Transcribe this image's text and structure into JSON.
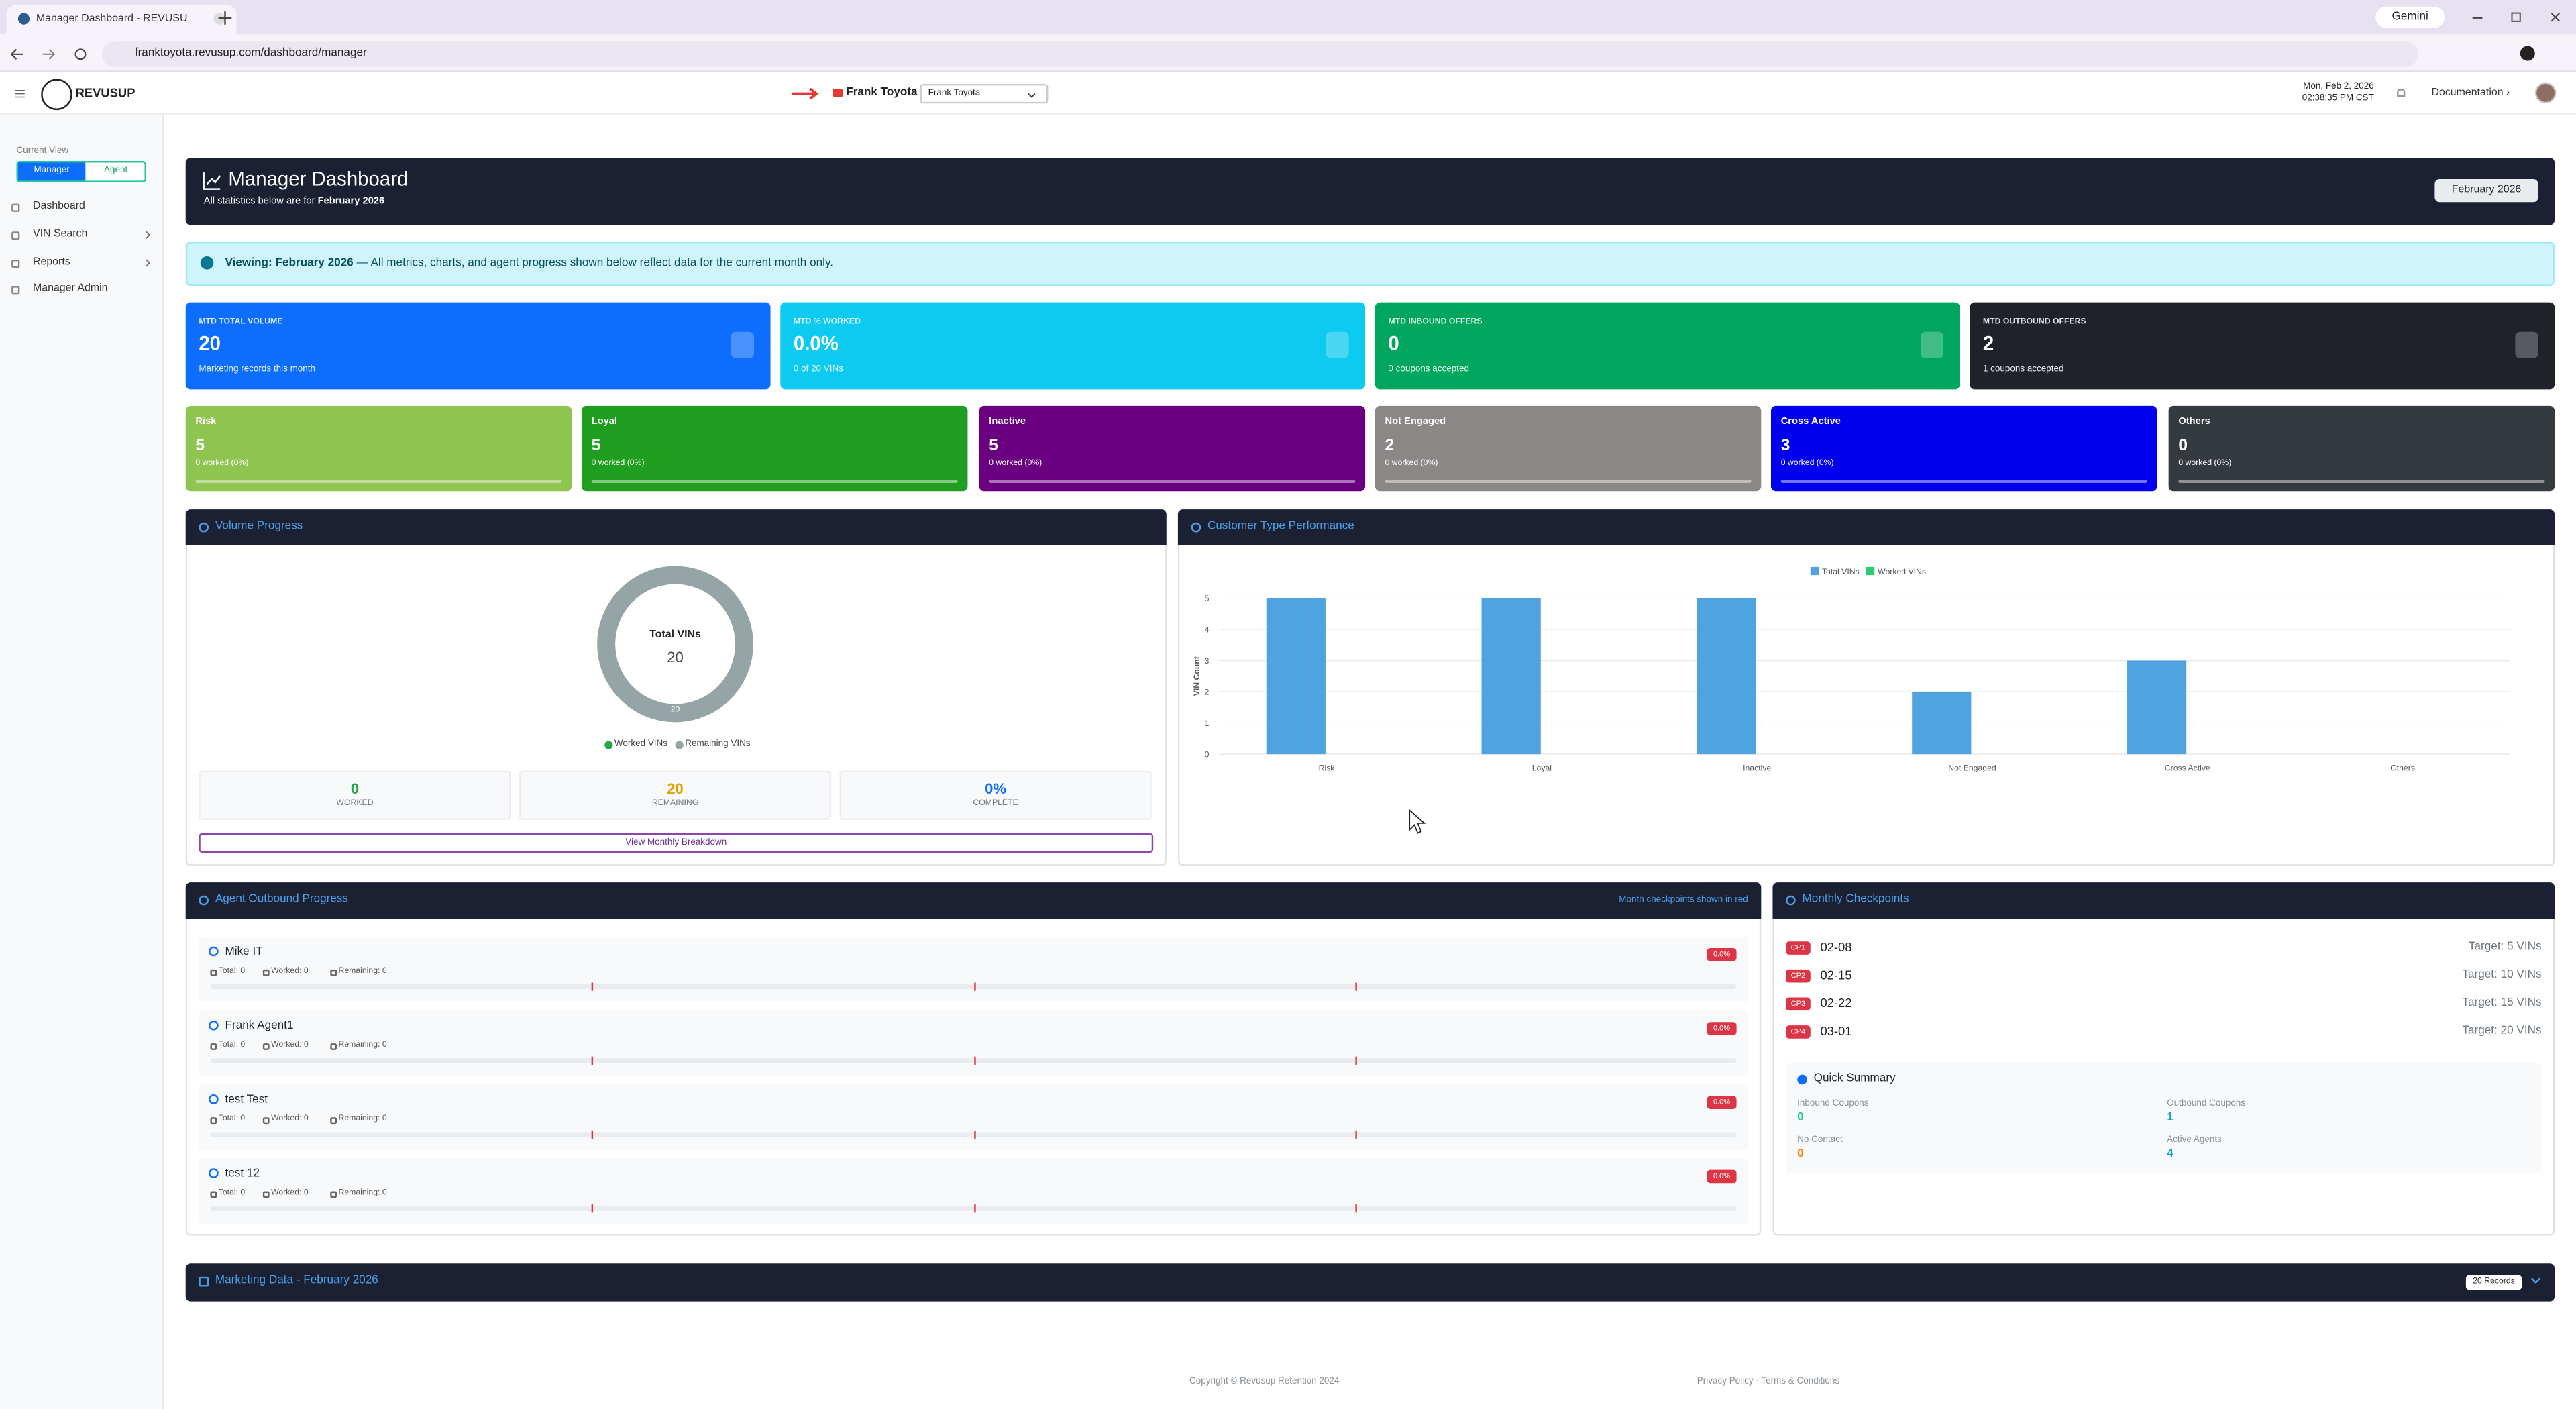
{
  "browser": {
    "tab_title": "Manager Dashboard - REVUSUP",
    "url": "franktoyota.revusup.com/dashboard/manager",
    "gemini": "Gemini"
  },
  "header": {
    "brand": "REVUSUP",
    "dealer": "Frank Toyota",
    "dealer_select": "Frank Toyota",
    "date": "Mon, Feb 2, 2026",
    "time": "02:38:35 PM CST",
    "documentation": "Documentation ›"
  },
  "sidebar": {
    "current_view": "Current View",
    "views": [
      "Manager",
      "Agent"
    ],
    "menu": [
      "Dashboard",
      "VIN Search",
      "Reports",
      "Manager Admin"
    ]
  },
  "banner": {
    "title": "Manager Dashboard",
    "subtitle_prefix": "All statistics below are for",
    "subtitle_month": "February 2026",
    "month_button": "February 2026"
  },
  "alert": {
    "strong": "Viewing: February 2026",
    "text": "— All metrics, charts, and agent progress shown below reflect data for the current month only."
  },
  "kpis": [
    {
      "label": "MTD TOTAL VOLUME",
      "value": "20",
      "sub": "Marketing records this month",
      "color": "#0d6efd"
    },
    {
      "label": "MTD % WORKED",
      "value": "0.0%",
      "sub": "0 of 20 VINs",
      "color": "#0dcaf0"
    },
    {
      "label": "MTD INBOUND OFFERS",
      "value": "0",
      "sub": "0 coupons accepted",
      "color": "#00a65e"
    },
    {
      "label": "MTD OUTBOUND OFFERS",
      "value": "2",
      "sub": "1 coupons accepted",
      "color": "#1f2329"
    }
  ],
  "segments": [
    {
      "name": "Risk",
      "value": "5",
      "sub": "0 worked (0%)",
      "color": "#8fc451"
    },
    {
      "name": "Loyal",
      "value": "5",
      "sub": "0 worked (0%)",
      "color": "#1f9e1f"
    },
    {
      "name": "Inactive",
      "value": "5",
      "sub": "0 worked (0%)",
      "color": "#6a0080"
    },
    {
      "name": "Not Engaged",
      "value": "2",
      "sub": "0 worked (0%)",
      "color": "#8c8787"
    },
    {
      "name": "Cross Active",
      "value": "3",
      "sub": "0 worked (0%)",
      "color": "#0000ee"
    },
    {
      "name": "Others",
      "value": "0",
      "sub": "0 worked (0%)",
      "color": "#343a40"
    }
  ],
  "volume_progress": {
    "title": "Volume Progress",
    "center_label": "Total VINs",
    "center_value": "20",
    "series": [
      {
        "name": "Worked VINs",
        "color": "#28a745",
        "value": 0
      },
      {
        "name": "Remaining VINs",
        "color": "#95a5a6",
        "value": 20,
        "label": "20"
      }
    ],
    "stats": [
      {
        "value": "0",
        "label": "WORKED",
        "color": "#28a745"
      },
      {
        "value": "20",
        "label": "REMAINING",
        "color": "#e6a100"
      },
      {
        "value": "0%",
        "label": "COMPLETE",
        "color": "#0d6efd"
      }
    ],
    "button": "View Monthly Breakdown"
  },
  "performance_chart": {
    "type": "bar",
    "title": "Customer Type Performance",
    "y_label": "VIN Count",
    "categories": [
      "Risk",
      "Loyal",
      "Inactive",
      "Not Engaged",
      "Cross Active",
      "Others"
    ],
    "series": [
      {
        "name": "Total VINs",
        "color": "#4fa3e0",
        "values": [
          5,
          5,
          5,
          2,
          3,
          0
        ]
      },
      {
        "name": "Worked VINs",
        "color": "#2ecc71",
        "values": [
          0,
          0,
          0,
          0,
          0,
          0
        ]
      }
    ],
    "ylim": [
      0,
      5
    ],
    "yticks": [
      0,
      1,
      2,
      3,
      4,
      5
    ],
    "grid": true
  },
  "agents": {
    "title": "Agent Outbound Progress",
    "note": "Month checkpoints shown in red",
    "rows": [
      {
        "name": "Mike IT",
        "percent": "0.0%",
        "total": "Total: 0",
        "worked": "Worked: 0",
        "remaining": "Remaining: 0"
      },
      {
        "name": "Frank Agent1",
        "percent": "0.0%",
        "total": "Total: 0",
        "worked": "Worked: 0",
        "remaining": "Remaining: 0"
      },
      {
        "name": "test Test",
        "percent": "0.0%",
        "total": "Total: 0",
        "worked": "Worked: 0",
        "remaining": "Remaining: 0"
      },
      {
        "name": "test 12",
        "percent": "0.0%",
        "total": "Total: 0",
        "worked": "Worked: 0",
        "remaining": "Remaining: 0"
      }
    ]
  },
  "checkpoints": {
    "title": "Monthly Checkpoints",
    "rows": [
      {
        "badge": "CP1",
        "date": "02-08",
        "target": "Target: 5 VINs"
      },
      {
        "badge": "CP2",
        "date": "02-15",
        "target": "Target: 10 VINs"
      },
      {
        "badge": "CP3",
        "date": "02-22",
        "target": "Target: 15 VINs"
      },
      {
        "badge": "CP4",
        "date": "03-01",
        "target": "Target: 20 VINs"
      }
    ],
    "summary": {
      "title": "Quick Summary",
      "items": [
        {
          "label": "Inbound Coupons",
          "value": "0",
          "color": "#20c997"
        },
        {
          "label": "Outbound Coupons",
          "value": "1",
          "color": "#0aa2c0"
        },
        {
          "label": "No Contact",
          "value": "0",
          "color": "#fd7e14"
        },
        {
          "label": "Active Agents",
          "value": "4",
          "color": "#0aa2c0"
        }
      ]
    }
  },
  "marketing": {
    "title": "Marketing Data - February 2026",
    "badge": "20 Records"
  },
  "footer": {
    "copyright": "Copyright © Revusup Retention 2024",
    "links": "Privacy Policy · Terms & Conditions"
  }
}
